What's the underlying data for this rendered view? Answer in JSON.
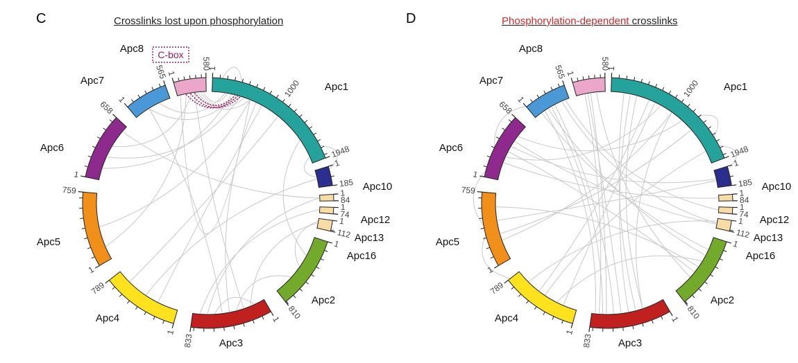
{
  "panels": [
    {
      "id": "c",
      "letter": "C",
      "title_plain": "Crosslinks lost upon phosphorylation",
      "title_red": "",
      "title_rest": "",
      "cbox_label": "C-box"
    },
    {
      "id": "d",
      "letter": "D",
      "title_plain": "",
      "title_red": "Phosphorylation-dependent",
      "title_rest": " crosslinks",
      "cbox_label": ""
    }
  ],
  "subunits": [
    {
      "name": "Apc1",
      "length": 1948,
      "color": "#26a29c",
      "start_label": "1",
      "end_label": "1948",
      "mid_label": "1000"
    },
    {
      "name": "Apc10",
      "length": 185,
      "color": "#2b2e8c",
      "start_label": "1",
      "end_label": "185",
      "mid_label": ""
    },
    {
      "name": "Apc12",
      "length": 84,
      "color": "#f7dca5",
      "start_label": "1",
      "end_label": "84",
      "mid_label": ""
    },
    {
      "name": "Apc13",
      "length": 74,
      "color": "#f7dca5",
      "start_label": "1",
      "end_label": "74",
      "mid_label": ""
    },
    {
      "name": "Apc16",
      "length": 112,
      "color": "#f7dca5",
      "start_label": "1",
      "end_label": "112",
      "mid_label": ""
    },
    {
      "name": "Apc2",
      "length": 810,
      "color": "#74aa2c",
      "start_label": "1",
      "end_label": "810",
      "mid_label": ""
    },
    {
      "name": "Apc3",
      "length": 833,
      "color": "#c0211f",
      "start_label": "1",
      "end_label": "833",
      "mid_label": ""
    },
    {
      "name": "Apc4",
      "length": 789,
      "color": "#fde21d",
      "start_label": "1",
      "end_label": "789",
      "mid_label": ""
    },
    {
      "name": "Apc5",
      "length": 759,
      "color": "#f0901a",
      "start_label": "1",
      "end_label": "759",
      "mid_label": ""
    },
    {
      "name": "Apc6",
      "length": 658,
      "color": "#8e2a8e",
      "start_label": "1",
      "end_label": "658",
      "mid_label": ""
    },
    {
      "name": "Apc7",
      "length": 565,
      "color": "#4b98d6",
      "start_label": "1",
      "end_label": "565",
      "mid_label": ""
    },
    {
      "name": "Apc8",
      "length": 580,
      "color": "#eaa7c9",
      "start_label": "1",
      "end_label": "580",
      "mid_label": ""
    }
  ],
  "colors": {
    "crosslink": "#c8c8c8",
    "cbox_link": "#9b1b5f",
    "title_red": "#d62728"
  }
}
